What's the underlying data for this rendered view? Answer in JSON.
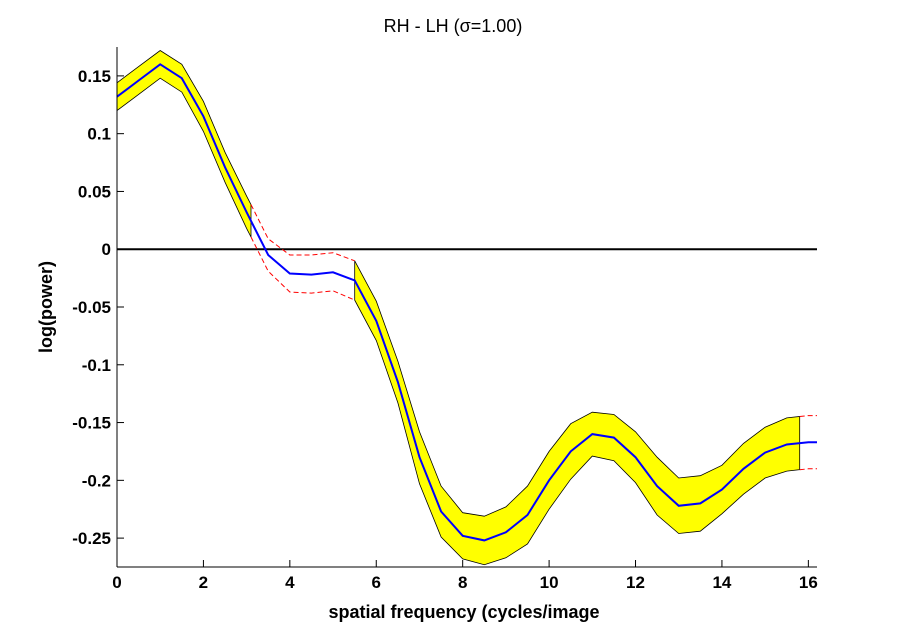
{
  "chart_data": {
    "type": "line",
    "title": "RH - LH (σ=1.00)",
    "xlabel": "spatial frequency (cycles/image",
    "ylabel": "log(power)",
    "xlim": [
      0,
      16.2
    ],
    "ylim": [
      -0.275,
      0.175
    ],
    "xticks": [
      0,
      2,
      4,
      6,
      8,
      10,
      12,
      14,
      16
    ],
    "xtick_labels": [
      "0",
      "2",
      "4",
      "6",
      "8",
      "10",
      "12",
      "14",
      "16"
    ],
    "yticks": [
      0.15,
      0.1,
      0.05,
      0,
      -0.05,
      -0.1,
      -0.15,
      -0.2,
      -0.25
    ],
    "ytick_labels": [
      "0.15",
      "0.1",
      "0.05",
      "0",
      "-0.05",
      "-0.1",
      "-0.15",
      "-0.2",
      "-0.25"
    ],
    "grid": false,
    "colors": {
      "mean": "#0000ff",
      "band_fill": "#ffff00",
      "band_edge": "#000000",
      "bound_dashed": "#ff0000",
      "zero_line": "#000000"
    },
    "x": [
      0,
      0.5,
      1,
      1.5,
      2,
      2.5,
      3,
      3.5,
      4,
      4.5,
      5,
      5.5,
      6,
      6.5,
      7,
      7.5,
      8,
      8.5,
      9,
      9.5,
      10,
      10.5,
      11,
      11.5,
      12,
      12.5,
      13,
      13.5,
      14,
      14.5,
      15,
      15.5,
      16,
      16.2
    ],
    "series": [
      {
        "name": "mean",
        "values": [
          0.132,
          0.146,
          0.16,
          0.148,
          0.115,
          0.071,
          0.032,
          -0.005,
          -0.021,
          -0.022,
          -0.02,
          -0.027,
          -0.062,
          -0.115,
          -0.18,
          -0.227,
          -0.248,
          -0.252,
          -0.245,
          -0.23,
          -0.2,
          -0.175,
          -0.16,
          -0.163,
          -0.18,
          -0.205,
          -0.222,
          -0.22,
          -0.208,
          -0.19,
          -0.176,
          -0.169,
          -0.167,
          -0.167
        ]
      },
      {
        "name": "upper bound",
        "values": [
          0.144,
          0.158,
          0.172,
          0.16,
          0.128,
          0.084,
          0.046,
          0.009,
          -0.005,
          -0.005,
          -0.003,
          -0.01,
          -0.045,
          -0.097,
          -0.158,
          -0.205,
          -0.228,
          -0.231,
          -0.223,
          -0.205,
          -0.175,
          -0.151,
          -0.141,
          -0.143,
          -0.158,
          -0.18,
          -0.198,
          -0.196,
          -0.187,
          -0.168,
          -0.154,
          -0.146,
          -0.144,
          -0.144
        ]
      },
      {
        "name": "lower bound",
        "values": [
          0.12,
          0.134,
          0.148,
          0.136,
          0.102,
          0.058,
          0.018,
          -0.019,
          -0.037,
          -0.038,
          -0.036,
          -0.044,
          -0.079,
          -0.133,
          -0.203,
          -0.249,
          -0.268,
          -0.273,
          -0.267,
          -0.255,
          -0.225,
          -0.199,
          -0.179,
          -0.183,
          -0.202,
          -0.23,
          -0.246,
          -0.244,
          -0.229,
          -0.212,
          -0.198,
          -0.192,
          -0.19,
          -0.19
        ]
      }
    ],
    "highlight_regions": [
      [
        0,
        3.1
      ],
      [
        5.5,
        15.8
      ]
    ]
  }
}
